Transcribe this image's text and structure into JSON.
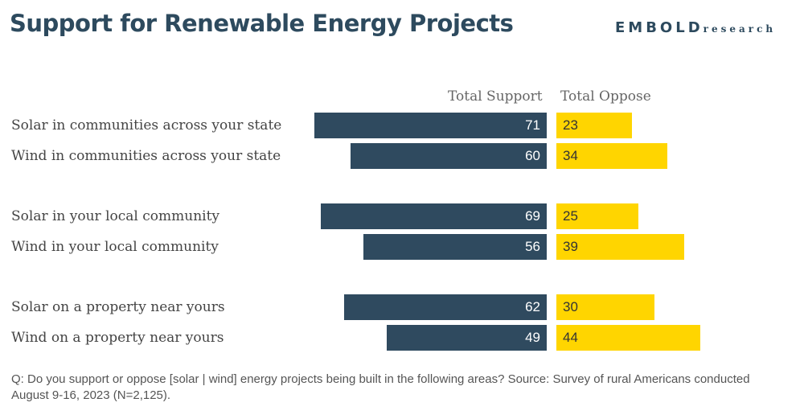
{
  "chart_data": {
    "type": "bar",
    "title": "Support for Renewable Energy Projects",
    "logo": "EMBOLD research",
    "legend": [
      "Total Support",
      "Total Oppose"
    ],
    "categories": [
      "Solar in communities across your state",
      "Wind in communities across your state",
      "Solar in your local community",
      "Wind in your local community",
      "Solar on a property near yours",
      "Wind on a property near yours"
    ],
    "series": [
      {
        "name": "Total Support",
        "values": [
          71,
          60,
          69,
          56,
          62,
          49
        ],
        "color": "#2f4a5f"
      },
      {
        "name": "Total Oppose",
        "values": [
          23,
          34,
          25,
          39,
          30,
          44
        ],
        "color": "#ffd500"
      }
    ],
    "note": "Q: Do you support or oppose [solar | wind] energy projects being built in the following areas? Source: Survey of rural Americans conducted August 9-16, 2023 (N=2,125)."
  }
}
